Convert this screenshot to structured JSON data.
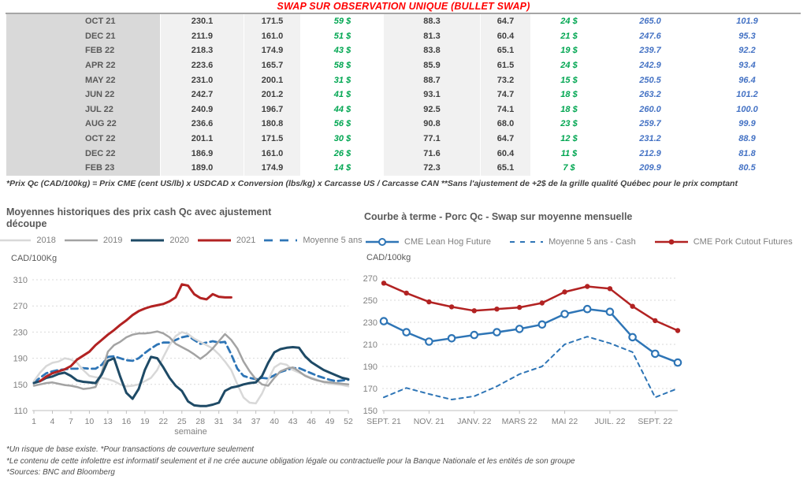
{
  "page": {
    "title": "SWAP SUR OBSERVATION UNIQUE (BULLET SWAP)",
    "table_footnote": "*Prix Qc (CAD/100kg) = Prix CME (cent US/lb) x USDCAD x Conversion (lbs/kg) x Carcasse US / Carcasse CAN **Sans l'ajustement de +2$ de la grille qualité Québec pour le prix comptant",
    "footnotes": [
      "*Un risque de base existe. *Pour transactions de couverture seulement",
      "*Le contenu de cette infolettre est informatif seulement et il ne crée aucune obligation légale ou contractuelle pour la Banque Nationale et les entités de son groupe",
      "*Sources: BNC and Bloomberg"
    ]
  },
  "colors": {
    "title_red": "#ff0000",
    "table_green": "#00a651",
    "table_blue": "#4472c4",
    "line_navy": "#1e4a66",
    "line_red": "#b22222",
    "line_steel_blue": "#2e75b6",
    "line_gray_2019": "#a3a3a3",
    "line_gray_2018": "#d8d8d8",
    "axis_text": "#808080"
  },
  "table": {
    "rows": [
      [
        "OCT 21",
        "230.1",
        "171.5",
        "59 $",
        "88.3",
        "64.7",
        "24 $",
        "265.0",
        "101.9"
      ],
      [
        "DEC 21",
        "211.9",
        "161.0",
        "51 $",
        "81.3",
        "60.4",
        "21 $",
        "247.6",
        "95.3"
      ],
      [
        "FEB 22",
        "218.3",
        "174.9",
        "43 $",
        "83.8",
        "65.1",
        "19 $",
        "239.7",
        "92.2"
      ],
      [
        "APR 22",
        "223.6",
        "165.7",
        "58 $",
        "85.9",
        "61.5",
        "24 $",
        "242.9",
        "93.4"
      ],
      [
        "MAY 22",
        "231.0",
        "200.1",
        "31 $",
        "88.7",
        "73.2",
        "15 $",
        "250.5",
        "96.4"
      ],
      [
        "JUN 22",
        "242.7",
        "201.2",
        "41 $",
        "93.1",
        "74.7",
        "18 $",
        "263.2",
        "101.2"
      ],
      [
        "JUL 22",
        "240.9",
        "196.7",
        "44 $",
        "92.5",
        "74.1",
        "18 $",
        "260.0",
        "100.0"
      ],
      [
        "AUG 22",
        "236.6",
        "180.8",
        "56 $",
        "90.8",
        "68.0",
        "23 $",
        "259.7",
        "99.9"
      ],
      [
        "OCT 22",
        "201.1",
        "171.5",
        "30 $",
        "77.1",
        "64.7",
        "12 $",
        "231.2",
        "88.9"
      ],
      [
        "DEC 22",
        "186.9",
        "161.0",
        "26 $",
        "71.6",
        "60.4",
        "11 $",
        "212.9",
        "81.8"
      ],
      [
        "FEB 23",
        "189.0",
        "174.9",
        "14 $",
        "72.3",
        "65.1",
        "7 $",
        "209.9",
        "80.5"
      ]
    ]
  },
  "chart_data": [
    {
      "type": "line",
      "title": "Moyennes historiques des prix cash Qc avec ajustement découpe",
      "ylabel": "CAD/100Kg",
      "xlabel": "semaine",
      "ylim": [
        110,
        310
      ],
      "yticks": [
        110,
        150,
        190,
        230,
        270,
        310
      ],
      "xlim": [
        1,
        52
      ],
      "xticks": [
        1,
        4,
        7,
        10,
        13,
        16,
        19,
        22,
        25,
        28,
        31,
        34,
        37,
        40,
        43,
        46,
        49,
        52
      ],
      "grid": "dashed-horizontal",
      "legend_position": "top-center",
      "series": [
        {
          "name": "2018",
          "color": "#d8d8d8",
          "width": 2.5,
          "x_start": 1,
          "values": [
            155,
            168,
            178,
            183,
            185,
            190,
            188,
            183,
            172,
            163,
            161,
            160,
            158,
            155,
            150,
            147,
            148,
            150,
            155,
            160,
            172,
            192,
            210,
            224,
            230,
            227,
            220,
            215,
            210,
            205,
            196,
            185,
            172,
            150,
            130,
            122,
            121,
            136,
            157,
            176,
            182,
            180,
            172,
            168,
            164,
            160,
            157,
            153,
            151,
            150,
            149,
            147
          ]
        },
        {
          "name": "2019",
          "color": "#a3a3a3",
          "width": 2.5,
          "x_start": 1,
          "values": [
            148,
            150,
            152,
            153,
            151,
            149,
            148,
            146,
            143,
            144,
            146,
            168,
            200,
            210,
            215,
            222,
            226,
            228,
            228,
            229,
            231,
            228,
            222,
            212,
            207,
            202,
            196,
            189,
            196,
            205,
            216,
            227,
            218,
            205,
            185,
            170,
            158,
            150,
            148,
            160,
            170,
            174,
            176,
            170,
            163,
            159,
            156,
            154,
            153,
            152,
            151,
            150
          ]
        },
        {
          "name": "2020",
          "color": "#1e4a66",
          "width": 3,
          "x_start": 1,
          "values": [
            152,
            155,
            160,
            162,
            166,
            168,
            163,
            156,
            154,
            153,
            152,
            165,
            186,
            190,
            162,
            137,
            128,
            143,
            172,
            192,
            190,
            176,
            160,
            148,
            140,
            124,
            118,
            117,
            117,
            119,
            122,
            140,
            145,
            147,
            150,
            152,
            153,
            163,
            183,
            199,
            204,
            206,
            207,
            206,
            193,
            184,
            178,
            172,
            168,
            164,
            160,
            158
          ]
        },
        {
          "name": "2021",
          "color": "#b22222",
          "width": 3,
          "x_start": 2,
          "values": [
            155,
            162,
            167,
            170,
            173,
            178,
            188,
            194,
            200,
            210,
            218,
            226,
            233,
            241,
            248,
            256,
            262,
            266,
            269,
            271,
            273,
            277,
            283,
            303,
            301,
            288,
            282,
            280,
            288,
            284,
            283,
            283
          ]
        },
        {
          "name": "Moyenne 5 ans",
          "color": "#2e75b6",
          "width": 2.8,
          "dash": "8,5",
          "legend_dash": "11,9",
          "x_start": 1,
          "values": [
            153,
            160,
            167,
            170,
            172,
            173,
            174,
            174,
            175,
            174,
            174,
            180,
            192,
            193,
            190,
            187,
            186,
            190,
            198,
            205,
            211,
            214,
            214,
            218,
            222,
            224,
            218,
            212,
            214,
            216,
            214,
            215,
            196,
            174,
            163,
            160,
            158,
            160,
            159,
            164,
            169,
            172,
            175,
            175,
            171,
            167,
            163,
            160,
            157,
            155,
            156,
            157
          ]
        }
      ]
    },
    {
      "type": "line",
      "title": "Courbe à terme - Porc Qc - Swap sur moyenne mensuelle",
      "ylabel": "CAD/100kg",
      "xlabel": "",
      "ylim": [
        150,
        270
      ],
      "yticks": [
        150,
        170,
        190,
        210,
        230,
        250,
        270
      ],
      "xlim": [
        0,
        13
      ],
      "xticks": [
        0,
        2,
        4,
        6,
        8,
        10,
        12
      ],
      "xtick_labels": [
        "SEPT. 21",
        "NOV. 21",
        "JANV. 22",
        "MARS 22",
        "MAI 22",
        "JUIL. 22",
        "SEPT. 22"
      ],
      "grid": "dashed-horizontal",
      "legend_position": "top-left",
      "series": [
        {
          "name": "CME Lean Hog Future",
          "color": "#2e75b6",
          "width": 2.5,
          "marker": "open-circle",
          "x_start": 0,
          "values": [
            231,
            221,
            212.5,
            215.5,
            218.5,
            221,
            224,
            228,
            237.5,
            242,
            239.5,
            216.5,
            201.5,
            193.5
          ]
        },
        {
          "name": "Moyenne 5 ans - Cash",
          "color": "#2e75b6",
          "width": 2,
          "dash": "5,5",
          "legend_dash": "6,7",
          "x_start": 0,
          "values": [
            162,
            170.5,
            165,
            160,
            163,
            172,
            183,
            190,
            210,
            217,
            211,
            203,
            162,
            170
          ]
        },
        {
          "name": "CME Pork Cutout Futures",
          "color": "#b22222",
          "width": 2.5,
          "marker": "dot",
          "x_start": 0,
          "values": [
            265.5,
            256.5,
            248.5,
            244,
            240.5,
            242,
            243.5,
            247.5,
            257.5,
            262.5,
            260.5,
            244.5,
            231.5,
            222.5
          ]
        }
      ]
    }
  ]
}
